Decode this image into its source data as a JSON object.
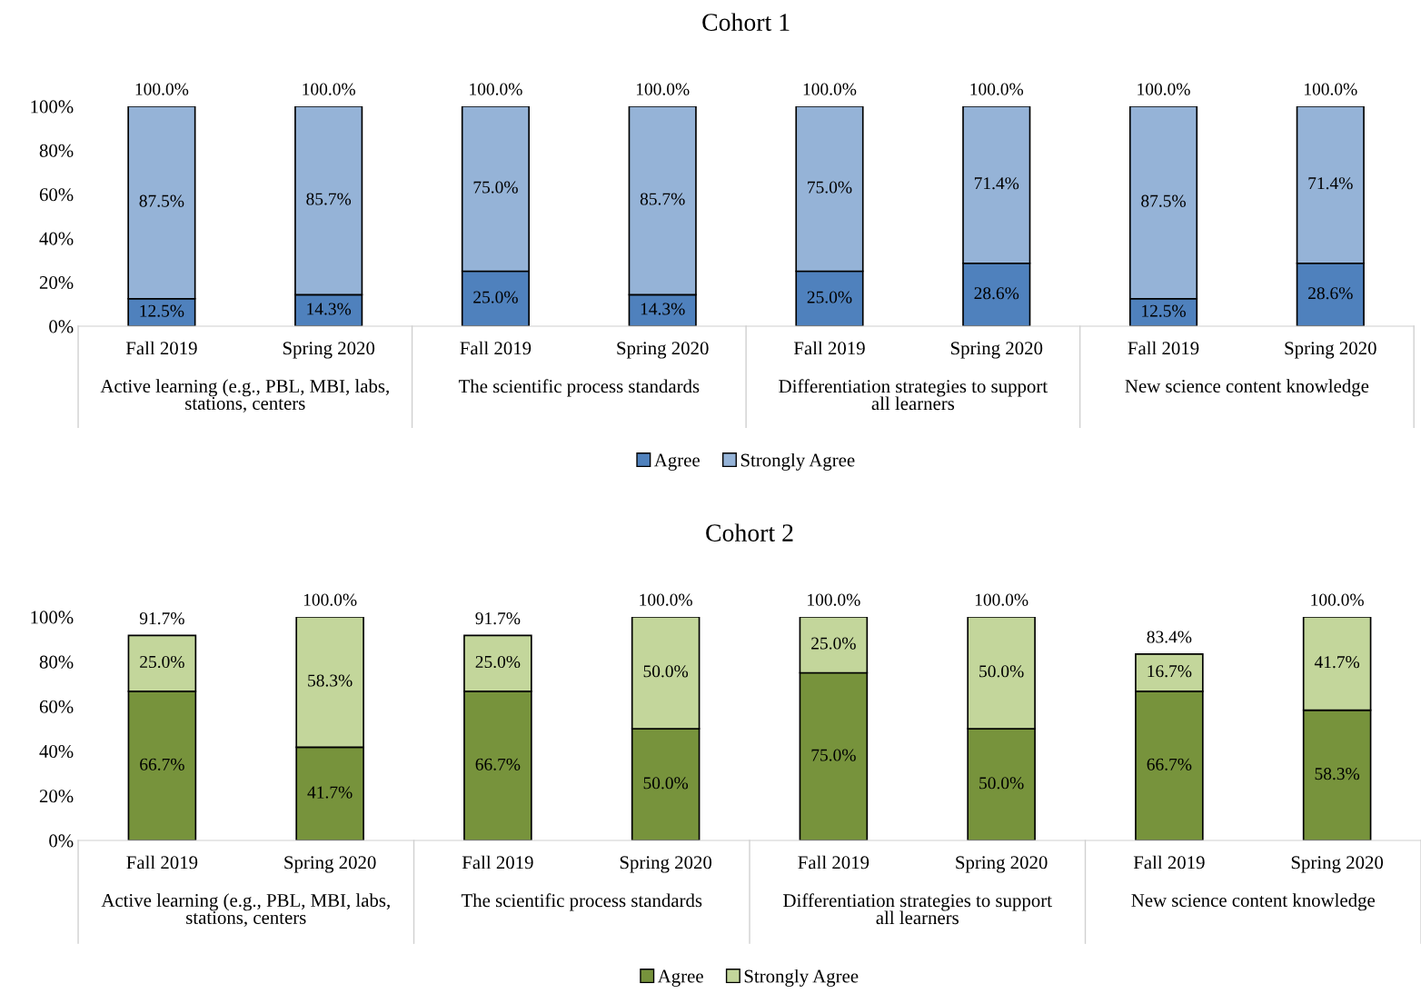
{
  "chart_data": [
    {
      "type": "bar",
      "title": "Cohort 1",
      "stacked": true,
      "legend": "bottom",
      "grid": false,
      "categories": [
        "Fall 2019",
        "Spring 2020",
        "Fall 2019",
        "Spring 2020",
        "Fall 2019",
        "Spring 2020",
        "Fall 2019",
        "Spring 2020"
      ],
      "annotations": [
        "Active learning (e.g., PBL, MBI, labs,\nstations, centers",
        "The scientific process standards",
        "Differentiation strategies to support\nall learners",
        "New science content knowledge"
      ],
      "ylim": [
        0,
        100
      ],
      "yticks": [
        {
          "value": 0,
          "label": "0%"
        },
        {
          "value": 20,
          "label": "20%"
        },
        {
          "value": 40,
          "label": "40%"
        },
        {
          "value": 60,
          "label": "60%"
        },
        {
          "value": 80,
          "label": "80%"
        },
        {
          "value": 100,
          "label": "100%"
        }
      ],
      "series": [
        {
          "name": "Agree",
          "color": "#4f81bd",
          "values": [
            12.5,
            14.3,
            25.0,
            14.3,
            25.0,
            28.6,
            12.5,
            28.6
          ],
          "value_labels": [
            "12.5%",
            "14.3%",
            "25.0%",
            "14.3%",
            "25.0%",
            "28.6%",
            "12.5%",
            "28.6%"
          ]
        },
        {
          "name": "Strongly Agree",
          "color": "#95b3d7",
          "values": [
            87.5,
            85.7,
            75.0,
            85.7,
            75.0,
            71.4,
            87.5,
            71.4
          ],
          "value_labels": [
            "87.5%",
            "85.7%",
            "75.0%",
            "85.7%",
            "75.0%",
            "71.4%",
            "87.5%",
            "71.4%"
          ]
        }
      ],
      "totals": [
        "100.0%",
        "100.0%",
        "100.0%",
        "100.0%",
        "100.0%",
        "100.0%",
        "100.0%",
        "100.0%"
      ]
    },
    {
      "type": "bar",
      "title": "Cohort 2",
      "stacked": true,
      "legend": "bottom",
      "grid": false,
      "categories": [
        "Fall 2019",
        "Spring 2020",
        "Fall 2019",
        "Spring 2020",
        "Fall 2019",
        "Spring 2020",
        "Fall 2019",
        "Spring 2020"
      ],
      "annotations": [
        "Active learning (e.g., PBL, MBI, labs,\nstations, centers",
        "The scientific process standards",
        "Differentiation strategies to support\nall learners",
        "New science content knowledge"
      ],
      "ylim": [
        0,
        100
      ],
      "yticks": [
        {
          "value": 0,
          "label": "0%"
        },
        {
          "value": 20,
          "label": "20%"
        },
        {
          "value": 40,
          "label": "40%"
        },
        {
          "value": 60,
          "label": "60%"
        },
        {
          "value": 80,
          "label": "80%"
        },
        {
          "value": 100,
          "label": "100%"
        }
      ],
      "series": [
        {
          "name": "Agree",
          "color": "#77933c",
          "values": [
            66.7,
            41.7,
            66.7,
            50.0,
            75.0,
            50.0,
            66.7,
            58.3
          ],
          "value_labels": [
            "66.7%",
            "41.7%",
            "66.7%",
            "50.0%",
            "75.0%",
            "50.0%",
            "66.7%",
            "58.3%"
          ]
        },
        {
          "name": "Strongly Agree",
          "color": "#c3d69b",
          "values": [
            25.0,
            58.3,
            25.0,
            50.0,
            25.0,
            50.0,
            16.7,
            41.7
          ],
          "value_labels": [
            "25.0%",
            "58.3%",
            "25.0%",
            "50.0%",
            "25.0%",
            "50.0%",
            "16.7%",
            "41.7%"
          ]
        }
      ],
      "totals": [
        "91.7%",
        "100.0%",
        "91.7%",
        "100.0%",
        "100.0%",
        "100.0%",
        "83.4%",
        "100.0%"
      ]
    }
  ]
}
